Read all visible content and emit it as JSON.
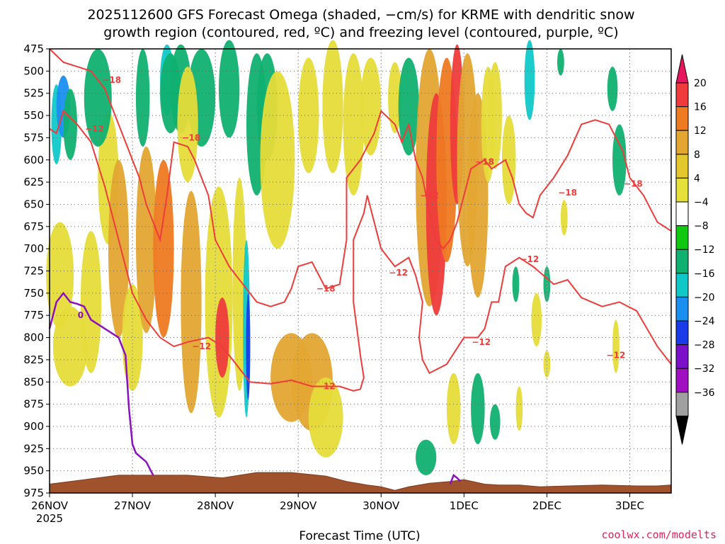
{
  "chart_data": {
    "type": "heatmap",
    "title_line1": "2025112600 GFS Forecast Omega (shaded, −cm/s) for KRME with dendritic snow",
    "title_line2": "growth region (contoured, red, ºC) and freezing level (contoured, purple, ºC)",
    "xlabel": "Forecast Time (UTC)",
    "ylabel": "",
    "credit": "coolwx.com/modelts",
    "year_label": "2025",
    "xlim": [
      0,
      180
    ],
    "ylim": [
      975,
      475
    ],
    "x_ticks": [
      {
        "hour": 0,
        "label": "26NOV"
      },
      {
        "hour": 24,
        "label": "27NOV"
      },
      {
        "hour": 48,
        "label": "28NOV"
      },
      {
        "hour": 72,
        "label": "29NOV"
      },
      {
        "hour": 96,
        "label": "30NOV"
      },
      {
        "hour": 120,
        "label": "1DEC"
      },
      {
        "hour": 144,
        "label": "2DEC"
      },
      {
        "hour": 168,
        "label": "3DEC"
      }
    ],
    "y_ticks": [
      475,
      500,
      525,
      550,
      575,
      600,
      625,
      650,
      675,
      700,
      725,
      750,
      775,
      800,
      825,
      850,
      875,
      900,
      925,
      950,
      975
    ],
    "grid": true,
    "colorbar": {
      "labels": [
        "20",
        "16",
        "12",
        "8",
        "4",
        "−4",
        "−8",
        "−12",
        "−16",
        "−20",
        "−24",
        "−28",
        "−32",
        "−36"
      ],
      "colors": [
        "#e8155e",
        "#ef3b3b",
        "#ee7a22",
        "#e3a731",
        "#e3c72d",
        "#e6e03a",
        "#ffffff",
        "#10c810",
        "#10b070",
        "#10c8c8",
        "#1a8ff0",
        "#1a3ce8",
        "#7a10c8",
        "#a010c0",
        "#a0a0a0",
        "#000000"
      ]
    },
    "omega_blobs": [
      {
        "x": 2,
        "p": 560,
        "w": 1.5,
        "h": 90,
        "v": -12
      },
      {
        "x": 4,
        "p": 540,
        "w": 2,
        "h": 70,
        "v": -16
      },
      {
        "x": 6,
        "p": 560,
        "w": 2,
        "h": 80,
        "v": -8
      },
      {
        "x": 3,
        "p": 730,
        "w": 4,
        "h": 120,
        "v": 6
      },
      {
        "x": 6,
        "p": 810,
        "w": 5,
        "h": 90,
        "v": 6
      },
      {
        "x": 12,
        "p": 760,
        "w": 3,
        "h": 160,
        "v": 5
      },
      {
        "x": 17,
        "p": 620,
        "w": 3,
        "h": 150,
        "v": 6
      },
      {
        "x": 20,
        "p": 700,
        "w": 3,
        "h": 200,
        "v": 8
      },
      {
        "x": 24,
        "p": 800,
        "w": 3,
        "h": 120,
        "v": 6
      },
      {
        "x": 28,
        "p": 690,
        "w": 3,
        "h": 210,
        "v": 10
      },
      {
        "x": 33,
        "p": 700,
        "w": 3,
        "h": 200,
        "v": 12
      },
      {
        "x": 14,
        "p": 530,
        "w": 4,
        "h": 110,
        "v": -8
      },
      {
        "x": 27,
        "p": 530,
        "w": 2,
        "h": 110,
        "v": -8
      },
      {
        "x": 34,
        "p": 510,
        "w": 2,
        "h": 80,
        "v": -12
      },
      {
        "x": 35,
        "p": 525,
        "w": 3,
        "h": 90,
        "v": -8
      },
      {
        "x": 38,
        "p": 520,
        "w": 3,
        "h": 100,
        "v": -8
      },
      {
        "x": 44,
        "p": 530,
        "w": 4,
        "h": 110,
        "v": -8
      },
      {
        "x": 40,
        "p": 560,
        "w": 3,
        "h": 130,
        "v": 5
      },
      {
        "x": 41,
        "p": 760,
        "w": 3,
        "h": 250,
        "v": 8
      },
      {
        "x": 49,
        "p": 760,
        "w": 4,
        "h": 260,
        "v": 6
      },
      {
        "x": 50,
        "p": 800,
        "w": 2,
        "h": 90,
        "v": 16
      },
      {
        "x": 52,
        "p": 520,
        "w": 3,
        "h": 110,
        "v": -8
      },
      {
        "x": 55,
        "p": 740,
        "w": 2,
        "h": 240,
        "v": 6
      },
      {
        "x": 57,
        "p": 790,
        "w": 1,
        "h": 200,
        "v": -12
      },
      {
        "x": 57.5,
        "p": 810,
        "w": 0.5,
        "h": 120,
        "v": -20
      },
      {
        "x": 60,
        "p": 560,
        "w": 3,
        "h": 160,
        "v": -8
      },
      {
        "x": 63,
        "p": 540,
        "w": 3,
        "h": 120,
        "v": -8
      },
      {
        "x": 66,
        "p": 600,
        "w": 5,
        "h": 200,
        "v": 6
      },
      {
        "x": 70,
        "p": 845,
        "w": 6,
        "h": 100,
        "v": 8
      },
      {
        "x": 76,
        "p": 850,
        "w": 6,
        "h": 110,
        "v": 10
      },
      {
        "x": 80,
        "p": 890,
        "w": 5,
        "h": 90,
        "v": 7
      },
      {
        "x": 75,
        "p": 550,
        "w": 3,
        "h": 130,
        "v": 6
      },
      {
        "x": 82,
        "p": 540,
        "w": 3,
        "h": 150,
        "v": 5
      },
      {
        "x": 88,
        "p": 560,
        "w": 3,
        "h": 160,
        "v": 6
      },
      {
        "x": 93,
        "p": 540,
        "w": 3,
        "h": 110,
        "v": 5
      },
      {
        "x": 100,
        "p": 530,
        "w": 2,
        "h": 80,
        "v": 5
      },
      {
        "x": 104,
        "p": 540,
        "w": 3,
        "h": 110,
        "v": -8
      },
      {
        "x": 110,
        "p": 620,
        "w": 4,
        "h": 290,
        "v": 8
      },
      {
        "x": 112,
        "p": 650,
        "w": 3,
        "h": 250,
        "v": 16
      },
      {
        "x": 115,
        "p": 600,
        "w": 3,
        "h": 230,
        "v": 12
      },
      {
        "x": 118,
        "p": 560,
        "w": 2,
        "h": 180,
        "v": 16
      },
      {
        "x": 121,
        "p": 600,
        "w": 3,
        "h": 240,
        "v": 10
      },
      {
        "x": 124,
        "p": 640,
        "w": 3,
        "h": 230,
        "v": 8
      },
      {
        "x": 109,
        "p": 935,
        "w": 3,
        "h": 40,
        "v": -8
      },
      {
        "x": 117,
        "p": 880,
        "w": 2,
        "h": 80,
        "v": 5
      },
      {
        "x": 124,
        "p": 880,
        "w": 2,
        "h": 80,
        "v": -8
      },
      {
        "x": 127,
        "p": 560,
        "w": 2,
        "h": 130,
        "v": 6
      },
      {
        "x": 129,
        "p": 550,
        "w": 2,
        "h": 120,
        "v": 5
      },
      {
        "x": 129,
        "p": 895,
        "w": 1.5,
        "h": 40,
        "v": -8
      },
      {
        "x": 133,
        "p": 600,
        "w": 2,
        "h": 100,
        "v": 6
      },
      {
        "x": 135,
        "p": 740,
        "w": 1,
        "h": 40,
        "v": -8
      },
      {
        "x": 136,
        "p": 880,
        "w": 1,
        "h": 50,
        "v": 5
      },
      {
        "x": 141,
        "p": 780,
        "w": 1.5,
        "h": 60,
        "v": 5
      },
      {
        "x": 144,
        "p": 740,
        "w": 1,
        "h": 40,
        "v": -8
      },
      {
        "x": 144,
        "p": 830,
        "w": 1,
        "h": 30,
        "v": 5
      },
      {
        "x": 139,
        "p": 510,
        "w": 1.5,
        "h": 90,
        "v": -12
      },
      {
        "x": 148,
        "p": 490,
        "w": 1,
        "h": 30,
        "v": -8
      },
      {
        "x": 149,
        "p": 665,
        "w": 1,
        "h": 40,
        "v": 5
      },
      {
        "x": 163,
        "p": 520,
        "w": 1.5,
        "h": 50,
        "v": -8
      },
      {
        "x": 165,
        "p": 600,
        "w": 2,
        "h": 80,
        "v": -8
      },
      {
        "x": 164,
        "p": 810,
        "w": 1,
        "h": 60,
        "v": 5
      }
    ],
    "dgz_contours": [
      {
        "label": "-12",
        "points": [
          [
            0,
            565
          ],
          [
            2,
            570
          ],
          [
            4,
            545
          ],
          [
            8,
            560
          ],
          [
            12,
            580
          ],
          [
            16,
            630
          ],
          [
            20,
            690
          ],
          [
            24,
            750
          ],
          [
            28,
            780
          ],
          [
            32,
            800
          ],
          [
            36,
            810
          ],
          [
            40,
            805
          ],
          [
            46,
            800
          ],
          [
            50,
            810
          ],
          [
            54,
            830
          ],
          [
            58,
            850
          ],
          [
            64,
            852
          ],
          [
            70,
            848
          ],
          [
            76,
            855
          ],
          [
            84,
            855
          ],
          [
            88,
            860
          ],
          [
            90,
            858
          ],
          [
            91,
            845
          ],
          [
            90,
            820
          ],
          [
            89,
            790
          ],
          [
            88,
            760
          ],
          [
            88,
            730
          ],
          [
            88,
            690
          ],
          [
            91,
            660
          ],
          [
            92,
            640
          ],
          [
            96,
            700
          ],
          [
            100,
            720
          ],
          [
            104,
            710
          ],
          [
            106,
            730
          ],
          [
            108,
            760
          ],
          [
            107,
            800
          ],
          [
            108,
            825
          ],
          [
            110,
            840
          ],
          [
            115,
            830
          ],
          [
            120,
            800
          ],
          [
            124,
            800
          ],
          [
            126,
            790
          ],
          [
            128,
            760
          ],
          [
            130,
            760
          ],
          [
            132,
            720
          ],
          [
            136,
            710
          ],
          [
            140,
            720
          ],
          [
            146,
            740
          ],
          [
            150,
            735
          ],
          [
            154,
            755
          ],
          [
            160,
            765
          ],
          [
            165,
            760
          ],
          [
            170,
            770
          ],
          [
            176,
            810
          ],
          [
            180,
            830
          ]
        ]
      },
      {
        "label": "-18",
        "points": [
          [
            0,
            475
          ],
          [
            4,
            490
          ],
          [
            8,
            495
          ],
          [
            12,
            500
          ],
          [
            16,
            520
          ],
          [
            20,
            560
          ],
          [
            24,
            600
          ],
          [
            26,
            620
          ],
          [
            28,
            650
          ],
          [
            30,
            670
          ],
          [
            32,
            690
          ],
          [
            34,
            640
          ],
          [
            36,
            580
          ],
          [
            40,
            585
          ],
          [
            42,
            600
          ],
          [
            46,
            640
          ],
          [
            48,
            690
          ],
          [
            52,
            720
          ],
          [
            56,
            740
          ],
          [
            60,
            760
          ],
          [
            64,
            765
          ],
          [
            68,
            760
          ],
          [
            70,
            745
          ],
          [
            72,
            720
          ],
          [
            76,
            715
          ],
          [
            78,
            730
          ],
          [
            80,
            745
          ],
          [
            84,
            740
          ],
          [
            86,
            690
          ],
          [
            86,
            650
          ],
          [
            86,
            620
          ],
          [
            88,
            610
          ],
          [
            90,
            600
          ],
          [
            94,
            570
          ],
          [
            96,
            545
          ],
          [
            100,
            560
          ],
          [
            102,
            580
          ],
          [
            104,
            560
          ],
          [
            106,
            600
          ],
          [
            108,
            620
          ],
          [
            110,
            660
          ],
          [
            112,
            690
          ],
          [
            114,
            700
          ],
          [
            116,
            690
          ],
          [
            118,
            670
          ],
          [
            120,
            640
          ],
          [
            122,
            610
          ],
          [
            126,
            600
          ],
          [
            128,
            610
          ],
          [
            132,
            600
          ],
          [
            134,
            620
          ],
          [
            136,
            650
          ],
          [
            138,
            660
          ],
          [
            140,
            665
          ],
          [
            142,
            640
          ],
          [
            146,
            620
          ],
          [
            150,
            595
          ],
          [
            154,
            560
          ],
          [
            158,
            555
          ],
          [
            162,
            560
          ],
          [
            166,
            590
          ],
          [
            168,
            620
          ],
          [
            172,
            640
          ],
          [
            176,
            670
          ],
          [
            180,
            680
          ]
        ]
      }
    ],
    "contour_labels": [
      {
        "x": 18,
        "p": 510,
        "text": "−18"
      },
      {
        "x": 13,
        "p": 565,
        "text": "−12"
      },
      {
        "x": 41,
        "p": 575,
        "text": "−18"
      },
      {
        "x": 44,
        "p": 810,
        "text": "−12"
      },
      {
        "x": 80,
        "p": 745,
        "text": "−18"
      },
      {
        "x": 80,
        "p": 855,
        "text": "−12"
      },
      {
        "x": 101,
        "p": 727,
        "text": "−12"
      },
      {
        "x": 110,
        "p": 640,
        "text": "−12"
      },
      {
        "x": 126,
        "p": 602,
        "text": "−18"
      },
      {
        "x": 125,
        "p": 805,
        "text": "−12"
      },
      {
        "x": 139,
        "p": 712,
        "text": "−12"
      },
      {
        "x": 150,
        "p": 637,
        "text": "−18"
      },
      {
        "x": 169,
        "p": 627,
        "text": "−18"
      },
      {
        "x": 164,
        "p": 820,
        "text": "−12"
      }
    ],
    "freezing_contour": {
      "label": "0",
      "points": [
        [
          0,
          790
        ],
        [
          2,
          760
        ],
        [
          4,
          750
        ],
        [
          6,
          760
        ],
        [
          8,
          762
        ],
        [
          10,
          765
        ],
        [
          12,
          780
        ],
        [
          16,
          790
        ],
        [
          20,
          800
        ],
        [
          22,
          820
        ],
        [
          23,
          880
        ],
        [
          24,
          920
        ],
        [
          25,
          930
        ],
        [
          28,
          940
        ],
        [
          30,
          955
        ]
      ]
    },
    "freezing_tail": [
      [
        116,
        965
      ],
      [
        117,
        955
      ],
      [
        118,
        958
      ],
      [
        119,
        962
      ]
    ],
    "terrain": [
      [
        0,
        965
      ],
      [
        10,
        960
      ],
      [
        20,
        955
      ],
      [
        30,
        955
      ],
      [
        40,
        955
      ],
      [
        50,
        958
      ],
      [
        55,
        955
      ],
      [
        60,
        952
      ],
      [
        70,
        952
      ],
      [
        80,
        956
      ],
      [
        86,
        962
      ],
      [
        92,
        966
      ],
      [
        96,
        968
      ],
      [
        100,
        972
      ],
      [
        104,
        968
      ],
      [
        110,
        964
      ],
      [
        116,
        962
      ],
      [
        120,
        960
      ],
      [
        126,
        965
      ],
      [
        130,
        966
      ],
      [
        136,
        966
      ],
      [
        142,
        968
      ],
      [
        150,
        967
      ],
      [
        160,
        966
      ],
      [
        170,
        967
      ],
      [
        176,
        967
      ],
      [
        180,
        966
      ]
    ]
  }
}
